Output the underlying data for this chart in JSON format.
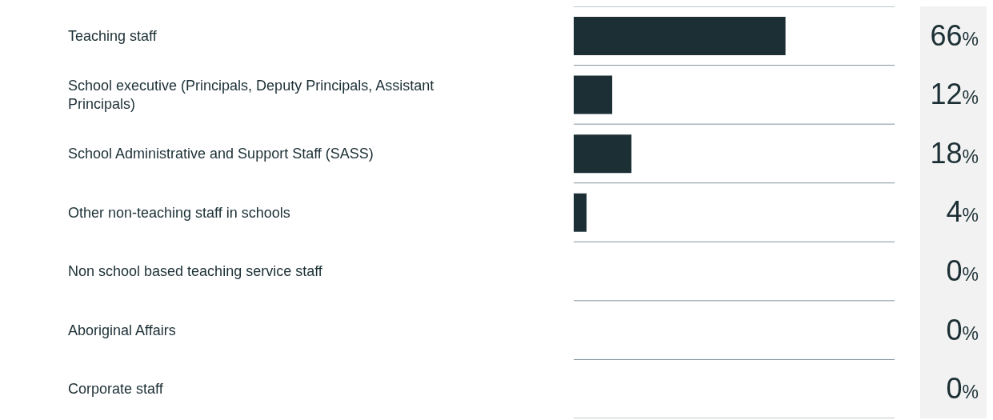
{
  "chart_data": {
    "type": "bar",
    "orientation": "horizontal",
    "categories": [
      "Teaching staff",
      "School executive (Principals, Deputy Principals, Assistant Principals)",
      "School Administrative and Support Staff (SASS)",
      "Other non-teaching staff in schools",
      "Non school based teaching service staff",
      "Aboriginal Affairs",
      "Corporate staff"
    ],
    "values": [
      66,
      12,
      18,
      4,
      0,
      0,
      0
    ],
    "value_labels": [
      "66%",
      "12%",
      "18%",
      "4%",
      "0%",
      "0%",
      "0%"
    ],
    "color": "#1b2f35",
    "grid": "y"
  }
}
